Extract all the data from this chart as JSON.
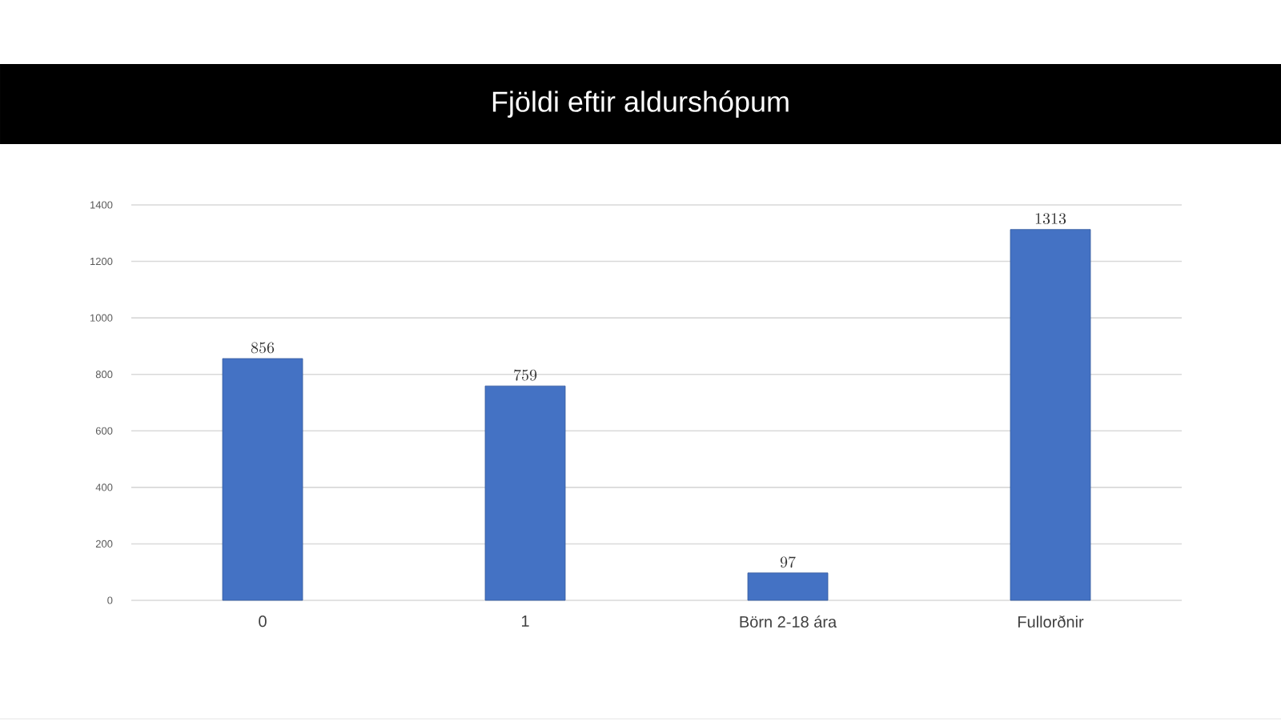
{
  "chart_data": {
    "type": "bar",
    "title": "Fjöldi eftir aldurshópum",
    "categories": [
      "0",
      "1",
      "Börn 2-18 ára",
      "Fullorðnir"
    ],
    "values": [
      856,
      759,
      97,
      1313
    ],
    "color": "#4472c4",
    "ylim": [
      0,
      1400
    ],
    "yticks": [
      0,
      200,
      400,
      600,
      800,
      1000,
      1200,
      1400
    ],
    "grid": "y",
    "data_labels": true
  }
}
